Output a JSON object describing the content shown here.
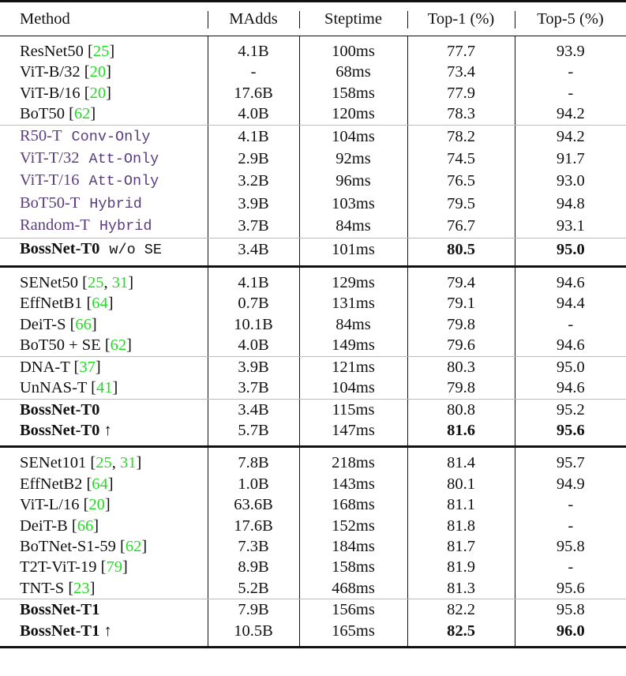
{
  "headers": [
    "Method",
    "MAdds",
    "Steptime",
    "Top-1 (%)",
    "Top-5 (%)"
  ],
  "groups": [
    {
      "subgroups": [
        [
          {
            "name": "ResNet50",
            "cites": [
              "25"
            ],
            "madds": "4.1B",
            "steptime": "100ms",
            "top1": "77.7",
            "top5": "93.9"
          },
          {
            "name": "ViT-B/32",
            "cites": [
              "20"
            ],
            "madds": "-",
            "steptime": "68ms",
            "top1": "73.4",
            "top5": "-"
          },
          {
            "name": "ViT-B/16",
            "cites": [
              "20"
            ],
            "madds": "17.6B",
            "steptime": "158ms",
            "top1": "77.9",
            "top5": "-"
          },
          {
            "name": "BoT50",
            "cites": [
              "62"
            ],
            "madds": "4.0B",
            "steptime": "120ms",
            "top1": "78.3",
            "top5": "94.2"
          }
        ],
        [
          {
            "name": "R50-T",
            "tag": "Conv-Only",
            "style": "purple",
            "madds": "4.1B",
            "steptime": "104ms",
            "top1": "78.2",
            "top5": "94.2"
          },
          {
            "name": "ViT-T/32",
            "tag": "Att-Only",
            "style": "purple",
            "madds": "2.9B",
            "steptime": "92ms",
            "top1": "74.5",
            "top5": "91.7"
          },
          {
            "name": "ViT-T/16",
            "tag": "Att-Only",
            "style": "purple",
            "madds": "3.2B",
            "steptime": "96ms",
            "top1": "76.5",
            "top5": "93.0"
          },
          {
            "name": "BoT50-T",
            "tag": "Hybrid",
            "style": "purple",
            "madds": "3.9B",
            "steptime": "103ms",
            "top1": "79.5",
            "top5": "94.8"
          },
          {
            "name": "Random-T",
            "tag": "Hybrid",
            "style": "purple",
            "madds": "3.7B",
            "steptime": "84ms",
            "top1": "76.7",
            "top5": "93.1"
          }
        ],
        [
          {
            "name": "BossNet-T0",
            "tag": "w/o SE",
            "style": "bold",
            "madds": "3.4B",
            "steptime": "101ms",
            "top1": "80.5",
            "top5": "95.0",
            "bold_acc": true
          }
        ]
      ]
    },
    {
      "subgroups": [
        [
          {
            "name": "SENet50",
            "cites": [
              "25",
              "31"
            ],
            "madds": "4.1B",
            "steptime": "129ms",
            "top1": "79.4",
            "top5": "94.6"
          },
          {
            "name": "EffNetB1",
            "cites": [
              "64"
            ],
            "madds": "0.7B",
            "steptime": "131ms",
            "top1": "79.1",
            "top5": "94.4"
          },
          {
            "name": "DeiT-S",
            "cites": [
              "66"
            ],
            "madds": "10.1B",
            "steptime": "84ms",
            "top1": "79.8",
            "top5": "-"
          },
          {
            "name": "BoT50 + SE",
            "cites": [
              "62"
            ],
            "madds": "4.0B",
            "steptime": "149ms",
            "top1": "79.6",
            "top5": "94.6"
          }
        ],
        [
          {
            "name": "DNA-T",
            "cites": [
              "37"
            ],
            "madds": "3.9B",
            "steptime": "121ms",
            "top1": "80.3",
            "top5": "95.0"
          },
          {
            "name": "UnNAS-T",
            "cites": [
              "41"
            ],
            "madds": "3.7B",
            "steptime": "104ms",
            "top1": "79.8",
            "top5": "94.6"
          }
        ],
        [
          {
            "name": "BossNet-T0",
            "style": "bold",
            "madds": "3.4B",
            "steptime": "115ms",
            "top1": "80.8",
            "top5": "95.2"
          },
          {
            "name": "BossNet-T0 ↑",
            "style": "bold",
            "madds": "5.7B",
            "steptime": "147ms",
            "top1": "81.6",
            "top5": "95.6",
            "bold_acc": true
          }
        ]
      ]
    },
    {
      "subgroups": [
        [
          {
            "name": "SENet101",
            "cites": [
              "25",
              "31"
            ],
            "madds": "7.8B",
            "steptime": "218ms",
            "top1": "81.4",
            "top5": "95.7"
          },
          {
            "name": "EffNetB2",
            "cites": [
              "64"
            ],
            "madds": "1.0B",
            "steptime": "143ms",
            "top1": "80.1",
            "top5": "94.9"
          },
          {
            "name": "ViT-L/16",
            "cites": [
              "20"
            ],
            "madds": "63.6B",
            "steptime": "168ms",
            "top1": "81.1",
            "top5": "-"
          },
          {
            "name": "DeiT-B",
            "cites": [
              "66"
            ],
            "madds": "17.6B",
            "steptime": "152ms",
            "top1": "81.8",
            "top5": "-"
          },
          {
            "name": "BoTNet-S1-59",
            "cites": [
              "62"
            ],
            "madds": "7.3B",
            "steptime": "184ms",
            "top1": "81.7",
            "top5": "95.8"
          },
          {
            "name": "T2T-ViT-19",
            "cites": [
              "79"
            ],
            "madds": "8.9B",
            "steptime": "158ms",
            "top1": "81.9",
            "top5": "-"
          },
          {
            "name": "TNT-S",
            "cites": [
              "23"
            ],
            "madds": "5.2B",
            "steptime": "468ms",
            "top1": "81.3",
            "top5": "95.6"
          }
        ],
        [
          {
            "name": "BossNet-T1",
            "style": "bold",
            "madds": "7.9B",
            "steptime": "156ms",
            "top1": "82.2",
            "top5": "95.8"
          },
          {
            "name": "BossNet-T1 ↑",
            "style": "bold",
            "madds": "10.5B",
            "steptime": "165ms",
            "top1": "82.5",
            "top5": "96.0",
            "bold_acc": true
          }
        ]
      ]
    }
  ],
  "colors": {
    "citation": "#22dd22",
    "search_space_rows": "#5a3d7e",
    "text": "#111111"
  }
}
